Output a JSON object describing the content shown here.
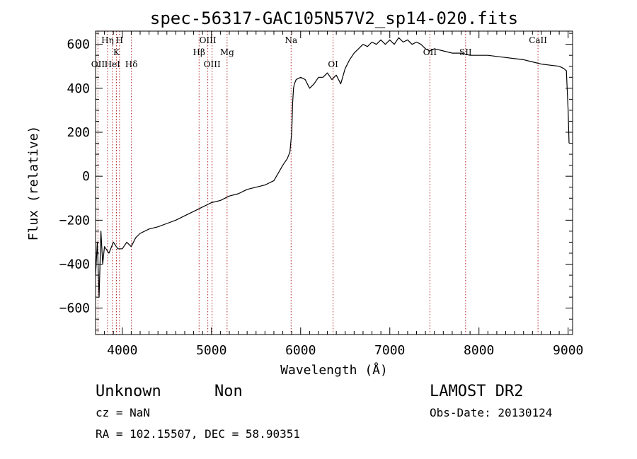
{
  "chart_data": {
    "type": "line",
    "title": "spec-56317-GAC105N57V2_sp14-020.fits",
    "xlabel": "Wavelength (Å)",
    "ylabel": "Flux (relative)",
    "xlim": [
      3700,
      9050
    ],
    "ylim": [
      -720,
      660
    ],
    "xticks": [
      4000,
      5000,
      6000,
      7000,
      8000,
      9000
    ],
    "yticks": [
      -600,
      -400,
      -200,
      0,
      200,
      400,
      600
    ],
    "grid": false,
    "line_color": "#000000",
    "marker_color": "#b22222",
    "spectral_lines": [
      {
        "label": "OII",
        "x": 3727,
        "row": 3
      },
      {
        "label": "Hη",
        "x": 3835,
        "row": 1
      },
      {
        "label": "HeI",
        "x": 3889,
        "row": 3
      },
      {
        "label": "K",
        "x": 3934,
        "row": 2
      },
      {
        "label": "H",
        "x": 3969,
        "row": 1
      },
      {
        "label": "Hδ",
        "x": 4102,
        "row": 3
      },
      {
        "label": "Hβ",
        "x": 4861,
        "row": 2
      },
      {
        "label": "OIII",
        "x": 4959,
        "row": 1
      },
      {
        "label": "OIII",
        "x": 5007,
        "row": 3
      },
      {
        "label": "Mg",
        "x": 5175,
        "row": 2
      },
      {
        "label": "Na",
        "x": 5893,
        "row": 1
      },
      {
        "label": "OI",
        "x": 6364,
        "row": 3
      },
      {
        "label": "OII",
        "x": 7450,
        "row": 2
      },
      {
        "label": "SII",
        "x": 7850,
        "row": 2
      },
      {
        "label": "CaII",
        "x": 8662,
        "row": 1
      }
    ],
    "series": [
      {
        "x": [
          3700,
          3720,
          3740,
          3760,
          3780,
          3800,
          3850,
          3900,
          3950,
          4000,
          4050,
          4100,
          4150,
          4200,
          4300,
          4400,
          4500,
          4600,
          4700,
          4800,
          4900,
          5000,
          5100,
          5200,
          5300,
          5400,
          5500,
          5600,
          5700,
          5800,
          5850,
          5880,
          5900,
          5910,
          5920,
          5930,
          5950,
          6000,
          6050,
          6100,
          6150,
          6200,
          6250,
          6300,
          6350,
          6400,
          6450,
          6500,
          6550,
          6600,
          6650,
          6700,
          6750,
          6800,
          6850,
          6900,
          6950,
          7000,
          7050,
          7100,
          7150,
          7200,
          7250,
          7300,
          7350,
          7400,
          7450,
          7500,
          7550,
          7600,
          7700,
          7800,
          7900,
          8000,
          8100,
          8200,
          8300,
          8400,
          8500,
          8600,
          8700,
          8800,
          8900,
          8950,
          8980,
          9000,
          9010
        ],
        "y": [
          -450,
          -300,
          -550,
          -250,
          -400,
          -320,
          -350,
          -300,
          -330,
          -330,
          -300,
          -320,
          -280,
          -260,
          -240,
          -230,
          -215,
          -200,
          -180,
          -160,
          -140,
          -120,
          -110,
          -90,
          -80,
          -60,
          -50,
          -40,
          -20,
          50,
          80,
          110,
          200,
          330,
          400,
          420,
          440,
          450,
          440,
          400,
          420,
          450,
          450,
          470,
          440,
          460,
          420,
          490,
          530,
          560,
          580,
          600,
          590,
          610,
          600,
          620,
          600,
          620,
          600,
          630,
          610,
          620,
          600,
          610,
          600,
          580,
          570,
          580,
          575,
          570,
          560,
          560,
          550,
          550,
          550,
          545,
          540,
          535,
          530,
          520,
          510,
          505,
          500,
          490,
          480,
          300,
          150
        ]
      }
    ]
  },
  "footer": {
    "left_line1_a": "Unknown",
    "left_line1_b": "Non",
    "cz": "cz = NaN",
    "radec": "RA = 102.15507, DEC =  58.90351",
    "survey": "LAMOST DR2",
    "obsdate": "Obs-Date: 20130124"
  }
}
